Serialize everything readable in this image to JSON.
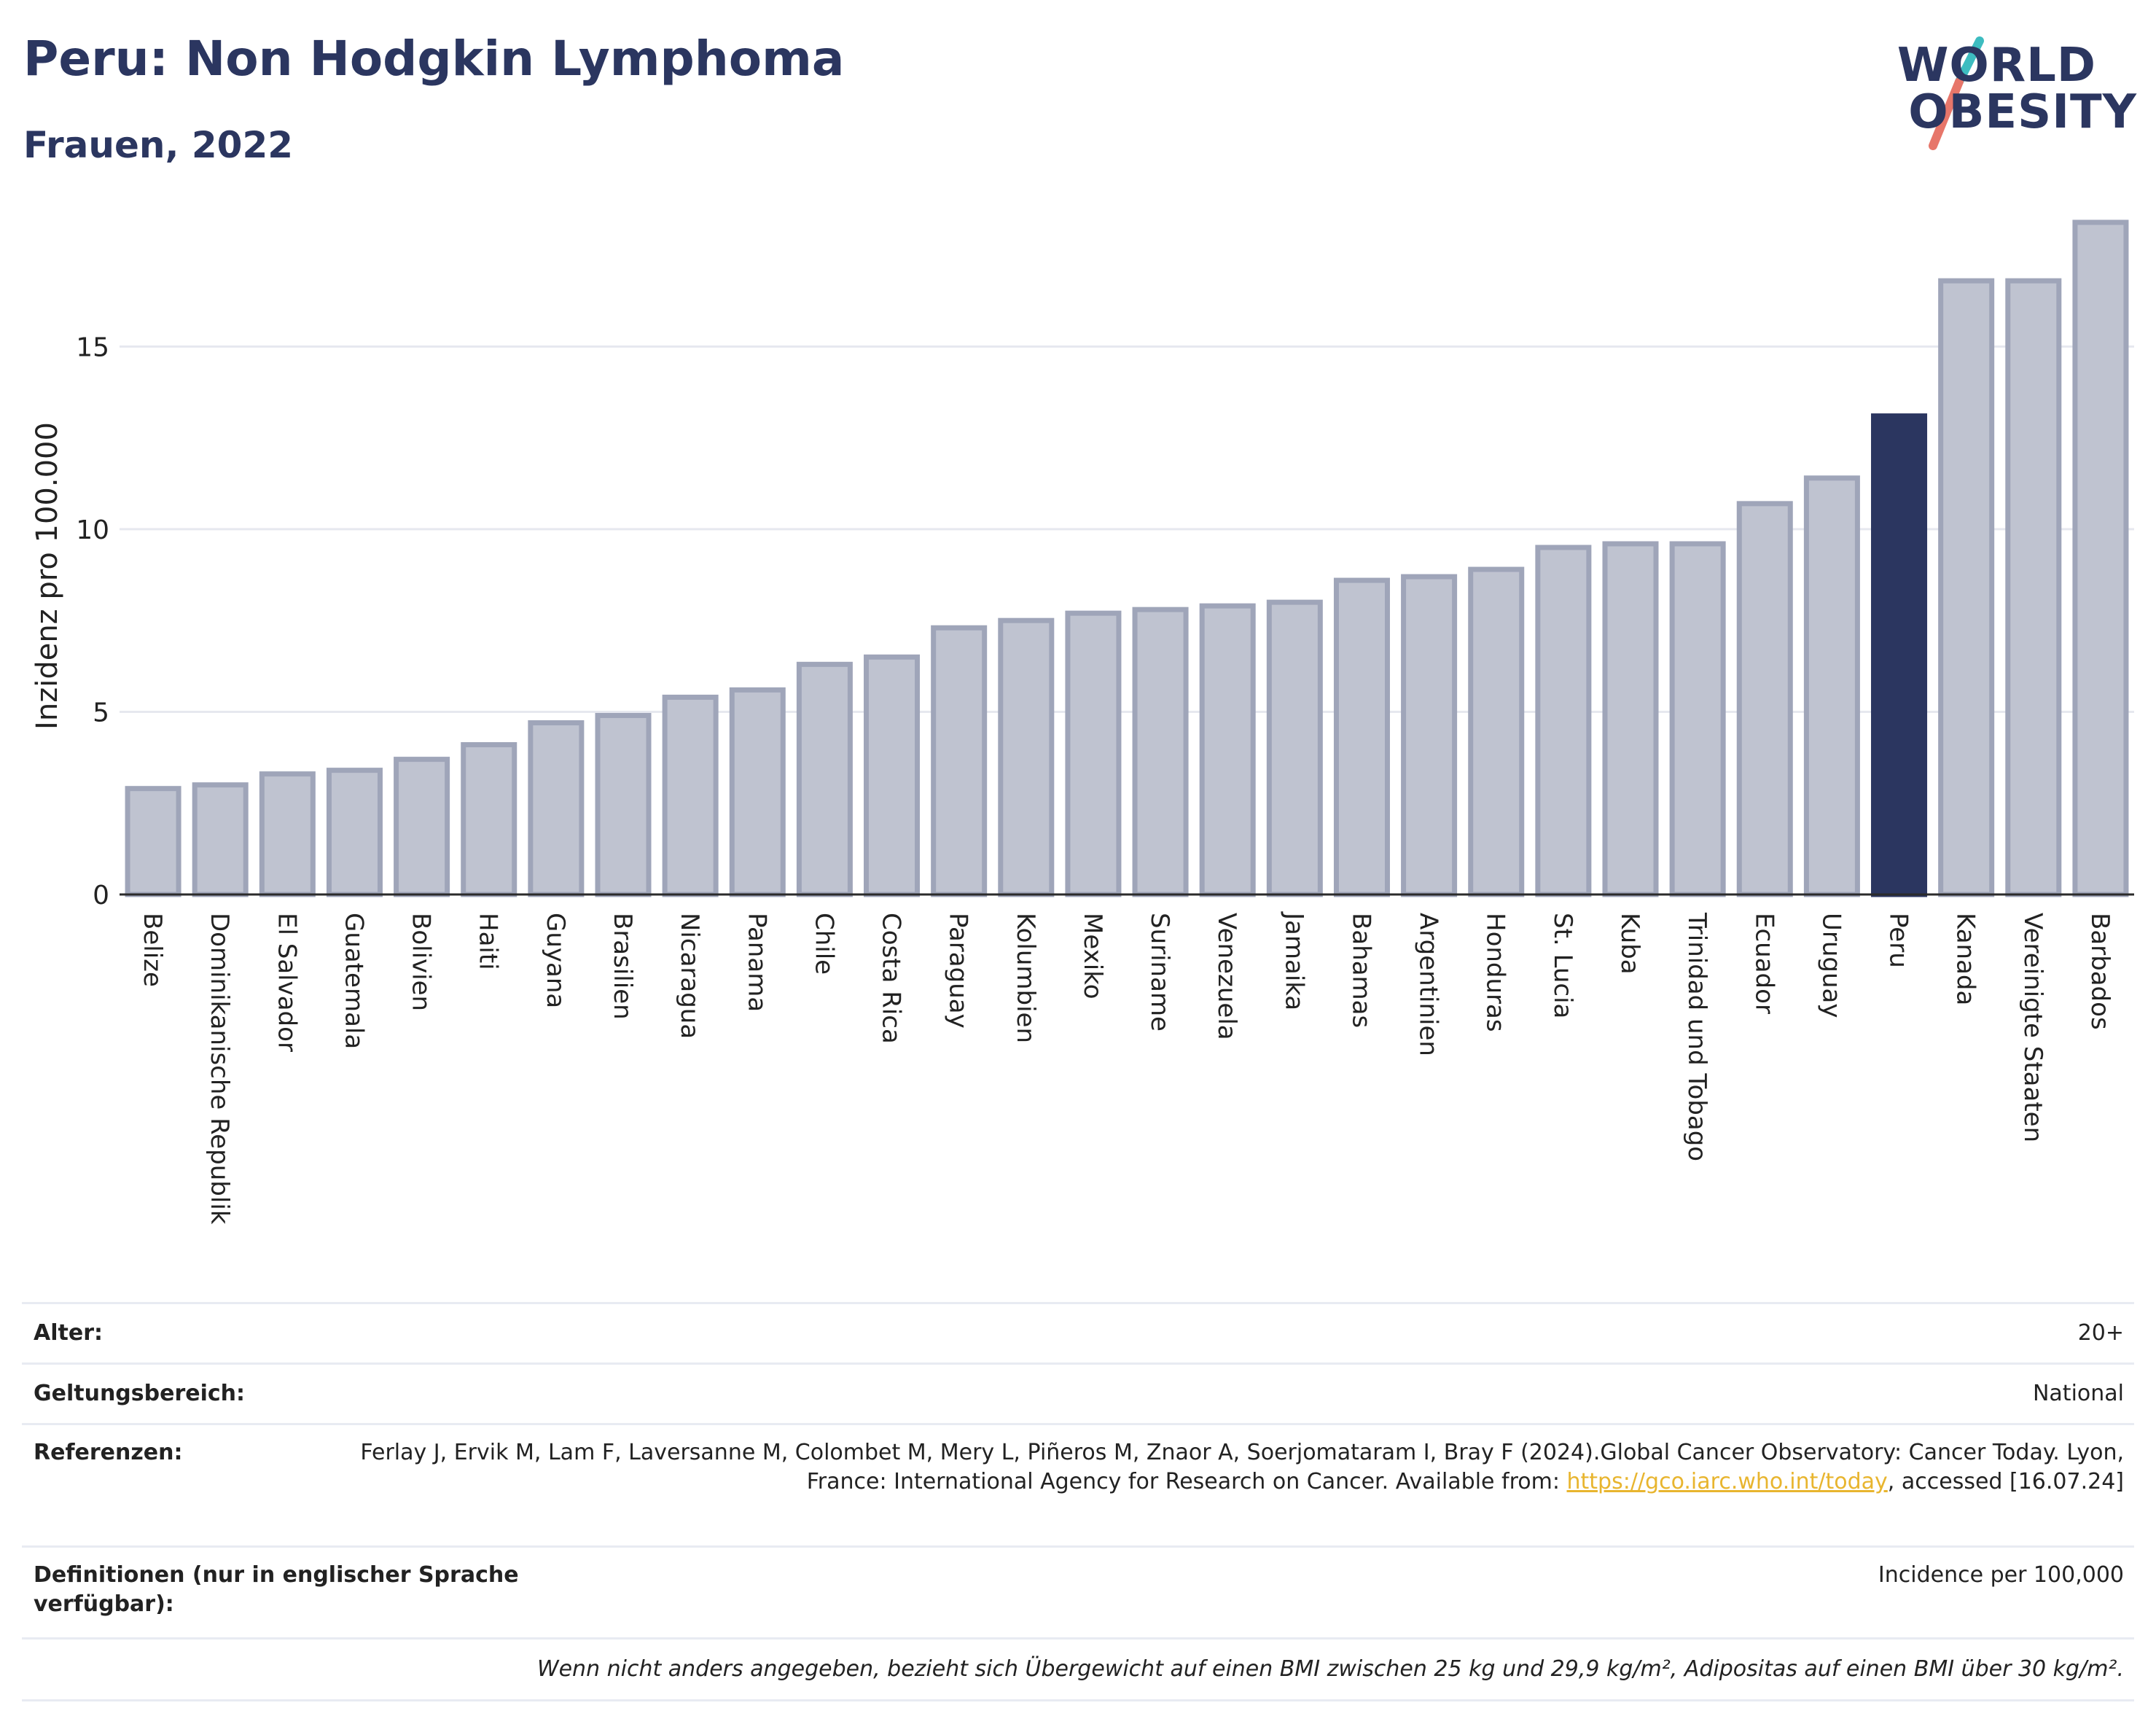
{
  "header": {
    "title": "Peru: Non Hodgkin Lymphoma",
    "subtitle": "Frauen, 2022"
  },
  "logo": {
    "line1": "WORLD",
    "line2": "OBESITY",
    "accent_colors": [
      "#3dbcc0",
      "#e7766a"
    ]
  },
  "chart_data": {
    "type": "bar",
    "title": "",
    "xlabel": "",
    "ylabel": "Inzidenz pro 100.000",
    "ylim": [
      0,
      18.5
    ],
    "yticks": [
      0,
      5,
      10,
      15
    ],
    "grid": true,
    "highlight_category": "Peru",
    "colors": {
      "bar": "#bfc3d0",
      "bar_stroke": "#9fa5b9",
      "highlight": "#2b3660",
      "grid": "#e6e8ef"
    },
    "categories": [
      "Belize",
      "Dominikanische Republik",
      "El Salvador",
      "Guatemala",
      "Bolivien",
      "Haiti",
      "Guyana",
      "Brasilien",
      "Nicaragua",
      "Panama",
      "Chile",
      "Costa Rica",
      "Paraguay",
      "Kolumbien",
      "Mexiko",
      "Suriname",
      "Venezuela",
      "Jamaika",
      "Bahamas",
      "Argentinien",
      "Honduras",
      "St. Lucia",
      "Kuba",
      "Trinidad und Tobago",
      "Ecuador",
      "Uruguay",
      "Peru",
      "Kanada",
      "Vereinigte Staaten",
      "Barbados"
    ],
    "values": [
      2.9,
      3.0,
      3.3,
      3.4,
      3.7,
      4.1,
      4.7,
      4.9,
      5.4,
      5.6,
      6.3,
      6.5,
      7.3,
      7.5,
      7.7,
      7.8,
      7.9,
      8.0,
      8.6,
      8.7,
      8.9,
      9.5,
      9.6,
      9.6,
      10.7,
      11.4,
      13.1,
      16.8,
      16.8,
      18.4
    ]
  },
  "meta": {
    "age_label": "Alter:",
    "age_value": "20+",
    "scope_label": "Geltungsbereich:",
    "scope_value": "National",
    "refs_label": "Referenzen:",
    "refs_text_1": "Ferlay J, Ervik M, Lam F, Laversanne M, Colombet M, Mery L, Piñeros M, Znaor A, Soerjomataram I, Bray F (2024).Global Cancer Observatory: Cancer Today. Lyon, France: International Agency for Research on Cancer. Available from: ",
    "refs_link": "https://gco.iarc.who.int/today",
    "refs_text_2": ", accessed [16.07.24]",
    "defs_label": "Definitionen (nur in englischer Sprache verfügbar):",
    "defs_value": "Incidence per 100,000",
    "footnote": "Wenn nicht anders angegeben, bezieht sich Übergewicht auf einen BMI zwischen 25 kg und 29,9 kg/m², Adipositas auf einen BMI über 30 kg/m²."
  }
}
